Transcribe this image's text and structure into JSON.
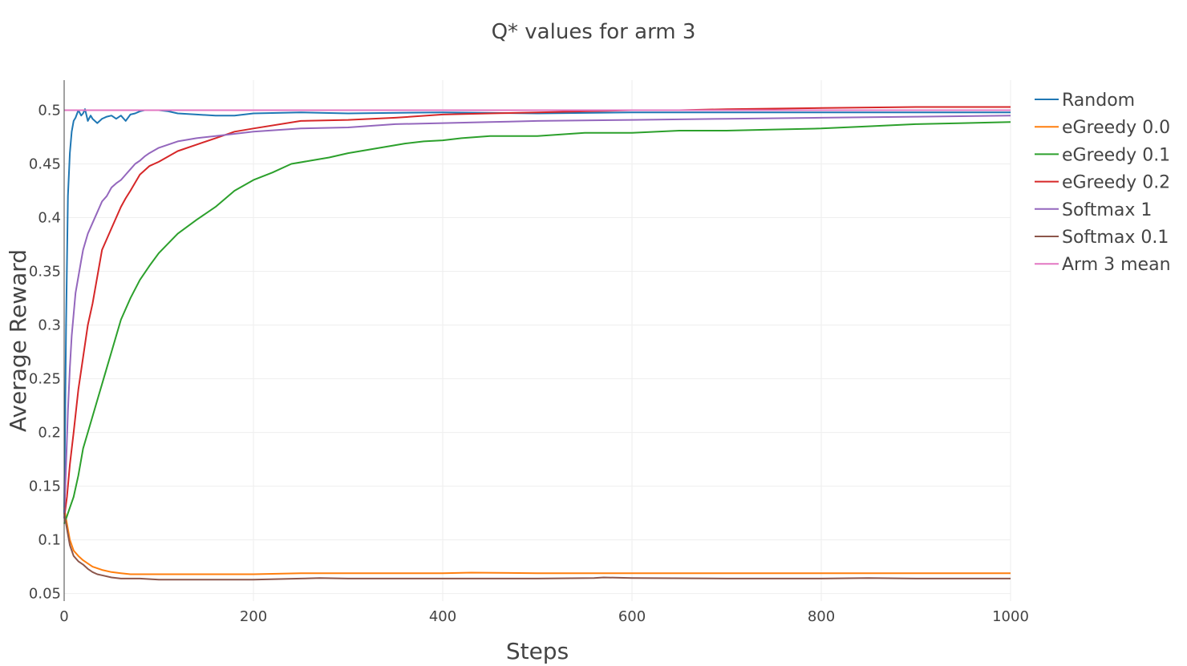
{
  "chart_data": {
    "type": "line",
    "title": "Q* values for arm 3",
    "xlabel": "Steps",
    "ylabel": "Average Reward",
    "xlim": [
      0,
      1000
    ],
    "ylim": [
      0.043,
      0.528
    ],
    "xticks": [
      0,
      200,
      400,
      600,
      800,
      1000
    ],
    "xtick_labels": [
      "0",
      "200",
      "400",
      "600",
      "800",
      "1000"
    ],
    "yticks": [
      0.05,
      0.1,
      0.15,
      0.2,
      0.25,
      0.3,
      0.35,
      0.4,
      0.45,
      0.5
    ],
    "ytick_labels": [
      "0.05",
      "0.1",
      "0.15",
      "0.2",
      "0.25",
      "0.3",
      "0.35",
      "0.4",
      "0.45",
      "0.5"
    ],
    "grid": true,
    "legend_position": "right",
    "series": [
      {
        "name": "Random",
        "color": "#1f77b4",
        "x": [
          0,
          2,
          4,
          6,
          8,
          10,
          12,
          15,
          18,
          20,
          22,
          25,
          28,
          30,
          35,
          40,
          45,
          50,
          55,
          60,
          65,
          70,
          75,
          80,
          85,
          90,
          100,
          110,
          120,
          140,
          160,
          180,
          200,
          250,
          300,
          400,
          500,
          600,
          700,
          800,
          900,
          1000
        ],
        "y": [
          0.125,
          0.3,
          0.42,
          0.46,
          0.48,
          0.49,
          0.493,
          0.5,
          0.495,
          0.497,
          0.501,
          0.49,
          0.495,
          0.492,
          0.488,
          0.492,
          0.494,
          0.495,
          0.492,
          0.495,
          0.49,
          0.496,
          0.497,
          0.499,
          0.5,
          0.5,
          0.5,
          0.499,
          0.497,
          0.496,
          0.495,
          0.495,
          0.497,
          0.498,
          0.497,
          0.498,
          0.497,
          0.498,
          0.498,
          0.498,
          0.498,
          0.498
        ]
      },
      {
        "name": "eGreedy 0.0",
        "color": "#ff7f0e",
        "x": [
          0,
          3,
          6,
          10,
          15,
          20,
          25,
          30,
          40,
          50,
          60,
          70,
          80,
          100,
          120,
          150,
          200,
          250,
          300,
          400,
          430,
          500,
          600,
          700,
          800,
          900,
          1000
        ],
        "y": [
          0.13,
          0.115,
          0.1,
          0.09,
          0.085,
          0.081,
          0.078,
          0.075,
          0.072,
          0.07,
          0.069,
          0.068,
          0.068,
          0.068,
          0.068,
          0.068,
          0.068,
          0.069,
          0.069,
          0.069,
          0.0695,
          0.069,
          0.069,
          0.069,
          0.069,
          0.069,
          0.069
        ]
      },
      {
        "name": "eGreedy 0.1",
        "color": "#2ca02c",
        "x": [
          0,
          3,
          6,
          10,
          15,
          20,
          25,
          30,
          35,
          40,
          45,
          50,
          55,
          60,
          65,
          70,
          80,
          90,
          100,
          120,
          140,
          160,
          180,
          200,
          220,
          240,
          260,
          280,
          300,
          320,
          340,
          360,
          380,
          400,
          420,
          450,
          500,
          550,
          600,
          650,
          700,
          750,
          800,
          850,
          900,
          950,
          1000
        ],
        "y": [
          0.115,
          0.122,
          0.13,
          0.14,
          0.16,
          0.185,
          0.2,
          0.215,
          0.23,
          0.245,
          0.26,
          0.275,
          0.29,
          0.305,
          0.315,
          0.325,
          0.342,
          0.355,
          0.367,
          0.385,
          0.398,
          0.41,
          0.425,
          0.435,
          0.442,
          0.45,
          0.453,
          0.456,
          0.46,
          0.463,
          0.466,
          0.469,
          0.471,
          0.472,
          0.474,
          0.476,
          0.476,
          0.479,
          0.479,
          0.481,
          0.481,
          0.482,
          0.483,
          0.485,
          0.487,
          0.488,
          0.489
        ]
      },
      {
        "name": "eGreedy 0.2",
        "color": "#d62728",
        "x": [
          0,
          3,
          6,
          10,
          15,
          20,
          25,
          30,
          35,
          40,
          45,
          50,
          55,
          60,
          65,
          70,
          80,
          90,
          100,
          120,
          140,
          160,
          180,
          200,
          250,
          300,
          350,
          400,
          450,
          500,
          550,
          600,
          650,
          700,
          800,
          900,
          1000
        ],
        "y": [
          0.12,
          0.14,
          0.17,
          0.2,
          0.24,
          0.27,
          0.3,
          0.32,
          0.345,
          0.37,
          0.38,
          0.39,
          0.4,
          0.41,
          0.418,
          0.425,
          0.44,
          0.448,
          0.452,
          0.462,
          0.468,
          0.474,
          0.48,
          0.483,
          0.49,
          0.491,
          0.493,
          0.496,
          0.497,
          0.498,
          0.499,
          0.5,
          0.5,
          0.501,
          0.502,
          0.503,
          0.503
        ]
      },
      {
        "name": "Softmax 1",
        "color": "#9467bd",
        "x": [
          0,
          2,
          4,
          6,
          8,
          10,
          12,
          15,
          18,
          20,
          25,
          30,
          35,
          40,
          45,
          50,
          55,
          60,
          65,
          70,
          75,
          80,
          85,
          90,
          100,
          110,
          120,
          140,
          160,
          180,
          200,
          250,
          300,
          350,
          400,
          450,
          500,
          600,
          700,
          800,
          900,
          1000
        ],
        "y": [
          0.12,
          0.17,
          0.22,
          0.26,
          0.29,
          0.31,
          0.33,
          0.345,
          0.36,
          0.37,
          0.385,
          0.395,
          0.405,
          0.415,
          0.42,
          0.428,
          0.432,
          0.435,
          0.44,
          0.445,
          0.45,
          0.453,
          0.457,
          0.46,
          0.465,
          0.468,
          0.471,
          0.474,
          0.476,
          0.478,
          0.48,
          0.483,
          0.484,
          0.487,
          0.488,
          0.489,
          0.49,
          0.491,
          0.492,
          0.493,
          0.494,
          0.495
        ]
      },
      {
        "name": "Softmax 0.1",
        "color": "#8c564b",
        "x": [
          0,
          3,
          6,
          10,
          15,
          20,
          25,
          30,
          35,
          40,
          50,
          60,
          70,
          80,
          100,
          120,
          150,
          200,
          250,
          270,
          300,
          400,
          500,
          560,
          570,
          600,
          700,
          800,
          850,
          900,
          1000
        ],
        "y": [
          0.125,
          0.11,
          0.095,
          0.085,
          0.08,
          0.077,
          0.073,
          0.07,
          0.068,
          0.067,
          0.065,
          0.064,
          0.064,
          0.064,
          0.063,
          0.063,
          0.063,
          0.063,
          0.064,
          0.0645,
          0.064,
          0.064,
          0.064,
          0.0645,
          0.065,
          0.0645,
          0.064,
          0.064,
          0.0645,
          0.064,
          0.064
        ]
      },
      {
        "name": "Arm 3 mean",
        "color": "#e377c2",
        "x": [
          0,
          1000
        ],
        "y": [
          0.5,
          0.5
        ]
      }
    ]
  }
}
